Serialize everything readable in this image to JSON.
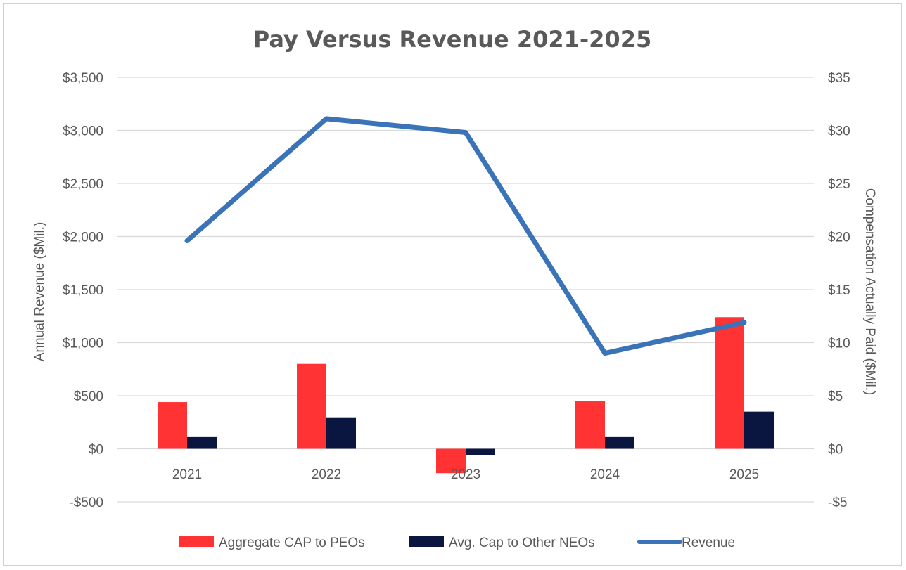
{
  "chart_data": {
    "type": "bar",
    "title": "Pay Versus Revenue 2021-2025",
    "categories": [
      "2021",
      "2022",
      "2023",
      "2024",
      "2025"
    ],
    "y_left": {
      "label": "Annual Revenue ($Mil.)",
      "range": [
        -500,
        3500
      ],
      "ticks": [
        -500,
        0,
        500,
        1000,
        1500,
        2000,
        2500,
        3000,
        3500
      ],
      "tick_labels": [
        "-$500",
        "$0",
        "$500",
        "$1,000",
        "$1,500",
        "$2,000",
        "$2,500",
        "$3,000",
        "$3,500"
      ]
    },
    "y_right": {
      "label": "Compensation Actually Paid ($Mil.)",
      "range": [
        -5,
        35
      ],
      "ticks": [
        -5,
        0,
        5,
        10,
        15,
        20,
        25,
        30,
        35
      ],
      "tick_labels": [
        "-$5",
        "$0",
        "$5",
        "$10",
        "$15",
        "$20",
        "$25",
        "$30",
        "$35"
      ]
    },
    "series": [
      {
        "name": "Aggregate CAP to PEOs",
        "kind": "bar",
        "axis": "right",
        "color": "#ff3333",
        "values": [
          4.4,
          8.0,
          -2.3,
          4.5,
          12.4
        ]
      },
      {
        "name": "Avg. Cap to Other NEOs",
        "kind": "bar",
        "axis": "right",
        "color": "#0a1540",
        "values": [
          1.1,
          2.9,
          -0.6,
          1.1,
          3.5
        ]
      },
      {
        "name": "Revenue",
        "kind": "line",
        "axis": "left",
        "color": "#3a73b8",
        "values": [
          1960,
          3110,
          2980,
          900,
          1190
        ]
      }
    ],
    "grid": true,
    "legend_position": "bottom"
  }
}
